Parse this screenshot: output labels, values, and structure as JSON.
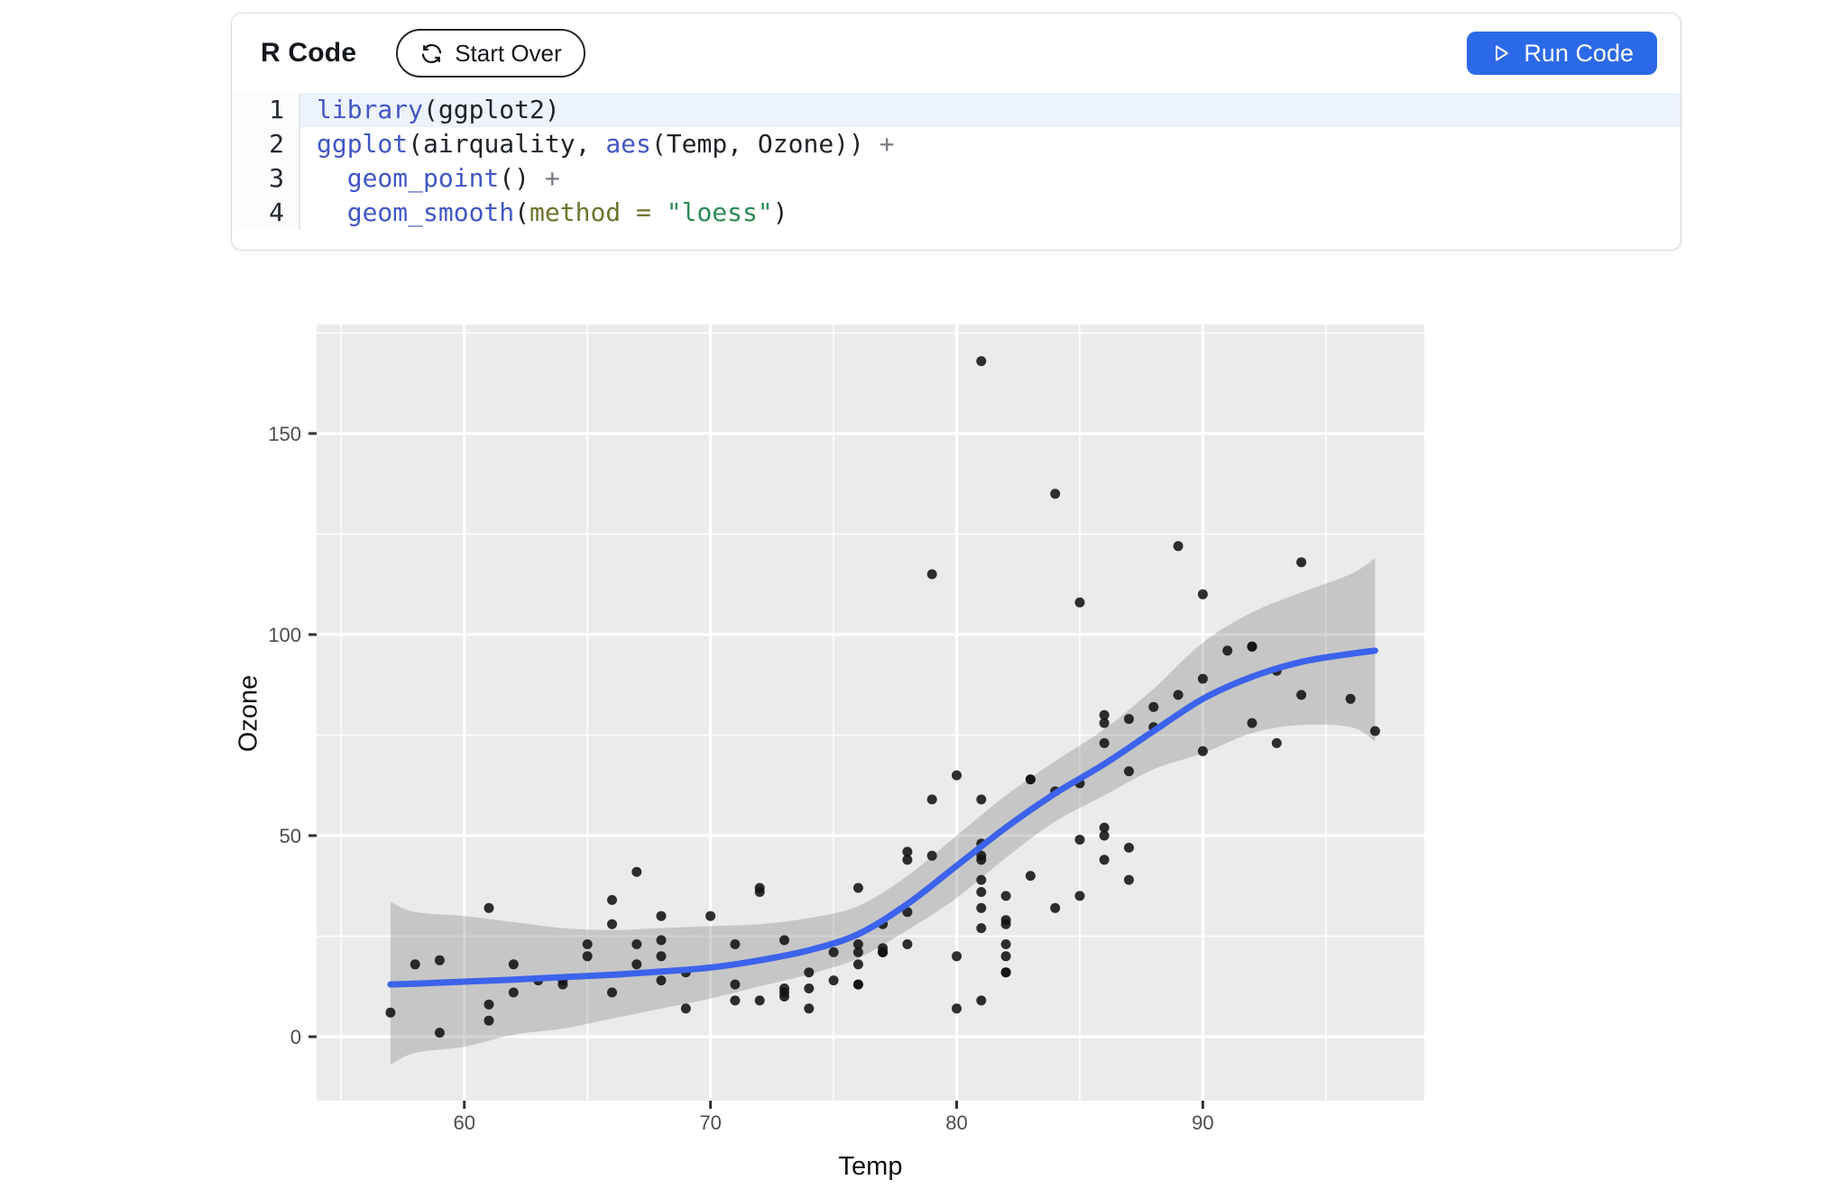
{
  "header": {
    "title": "R Code",
    "start_over_label": "Start Over",
    "run_code_label": "Run Code",
    "run_button_color": "#2c69e8"
  },
  "code": {
    "lines": [
      {
        "num": "1",
        "active": true,
        "tokens": [
          {
            "t": "library",
            "c": "fn"
          },
          {
            "t": "(ggplot2)",
            "c": "pl"
          }
        ]
      },
      {
        "num": "2",
        "active": false,
        "tokens": [
          {
            "t": "ggplot",
            "c": "fn"
          },
          {
            "t": "(airquality, ",
            "c": "pl"
          },
          {
            "t": "aes",
            "c": "fn"
          },
          {
            "t": "(Temp, Ozone)) ",
            "c": "pl"
          },
          {
            "t": "+",
            "c": "op"
          }
        ]
      },
      {
        "num": "3",
        "active": false,
        "tokens": [
          {
            "t": "  ",
            "c": "pl"
          },
          {
            "t": "geom_point",
            "c": "fn"
          },
          {
            "t": "() ",
            "c": "pl"
          },
          {
            "t": "+",
            "c": "op"
          }
        ]
      },
      {
        "num": "4",
        "active": false,
        "tokens": [
          {
            "t": "  ",
            "c": "pl"
          },
          {
            "t": "geom_smooth",
            "c": "fn"
          },
          {
            "t": "(",
            "c": "pl"
          },
          {
            "t": "method = ",
            "c": "arg"
          },
          {
            "t": "\"loess\"",
            "c": "str"
          },
          {
            "t": ")",
            "c": "pl"
          }
        ]
      }
    ]
  },
  "chart_data": {
    "type": "scatter",
    "title": "",
    "xlabel": "Temp",
    "ylabel": "Ozone",
    "xlim": [
      54,
      99
    ],
    "ylim": [
      -15.9,
      177.1
    ],
    "xticks": [
      60,
      70,
      80,
      90
    ],
    "xticks_minor": [
      55,
      65,
      75,
      85,
      95
    ],
    "yticks": [
      0,
      50,
      100,
      150
    ],
    "yticks_minor": [
      25,
      75,
      125,
      175
    ],
    "grid": "on",
    "panel_color": "#ebebeb",
    "point_color": "#121212",
    "smooth_color": "#3b63eb",
    "ribbon_color": "#7a7a7a",
    "points": [
      [
        67,
        41
      ],
      [
        72,
        36
      ],
      [
        74,
        12
      ],
      [
        62,
        18
      ],
      [
        66,
        28
      ],
      [
        65,
        23
      ],
      [
        59,
        19
      ],
      [
        61,
        8
      ],
      [
        74,
        7
      ],
      [
        69,
        16
      ],
      [
        66,
        11
      ],
      [
        68,
        14
      ],
      [
        58,
        18
      ],
      [
        64,
        14
      ],
      [
        66,
        34
      ],
      [
        57,
        6
      ],
      [
        68,
        30
      ],
      [
        62,
        11
      ],
      [
        59,
        1
      ],
      [
        73,
        11
      ],
      [
        61,
        4
      ],
      [
        61,
        32
      ],
      [
        67,
        23
      ],
      [
        81,
        45
      ],
      [
        79,
        115
      ],
      [
        76,
        37
      ],
      [
        82,
        29
      ],
      [
        90,
        71
      ],
      [
        87,
        39
      ],
      [
        82,
        23
      ],
      [
        77,
        21
      ],
      [
        72,
        37
      ],
      [
        65,
        20
      ],
      [
        73,
        12
      ],
      [
        76,
        13
      ],
      [
        84,
        135
      ],
      [
        85,
        49
      ],
      [
        81,
        32
      ],
      [
        83,
        64
      ],
      [
        83,
        40
      ],
      [
        88,
        77
      ],
      [
        92,
        97
      ],
      [
        92,
        97
      ],
      [
        89,
        85
      ],
      [
        73,
        10
      ],
      [
        81,
        27
      ],
      [
        80,
        7
      ],
      [
        81,
        48
      ],
      [
        82,
        35
      ],
      [
        84,
        61
      ],
      [
        87,
        79
      ],
      [
        85,
        63
      ],
      [
        74,
        16
      ],
      [
        86,
        80
      ],
      [
        85,
        108
      ],
      [
        82,
        20
      ],
      [
        86,
        52
      ],
      [
        88,
        82
      ],
      [
        86,
        50
      ],
      [
        83,
        64
      ],
      [
        81,
        59
      ],
      [
        81,
        39
      ],
      [
        81,
        9
      ],
      [
        82,
        16
      ],
      [
        86,
        78
      ],
      [
        85,
        35
      ],
      [
        87,
        66
      ],
      [
        89,
        122
      ],
      [
        90,
        89
      ],
      [
        90,
        110
      ],
      [
        86,
        44
      ],
      [
        82,
        28
      ],
      [
        80,
        65
      ],
      [
        77,
        22
      ],
      [
        79,
        59
      ],
      [
        76,
        23
      ],
      [
        78,
        31
      ],
      [
        78,
        44
      ],
      [
        77,
        21
      ],
      [
        72,
        9
      ],
      [
        79,
        45
      ],
      [
        81,
        168
      ],
      [
        86,
        73
      ],
      [
        97,
        76
      ],
      [
        94,
        118
      ],
      [
        96,
        84
      ],
      [
        94,
        85
      ],
      [
        91,
        96
      ],
      [
        92,
        78
      ],
      [
        93,
        73
      ],
      [
        93,
        91
      ],
      [
        87,
        47
      ],
      [
        84,
        32
      ],
      [
        80,
        20
      ],
      [
        78,
        23
      ],
      [
        75,
        21
      ],
      [
        73,
        24
      ],
      [
        81,
        44
      ],
      [
        76,
        21
      ],
      [
        77,
        28
      ],
      [
        71,
        9
      ],
      [
        71,
        13
      ],
      [
        78,
        46
      ],
      [
        67,
        18
      ],
      [
        76,
        13
      ],
      [
        68,
        24
      ],
      [
        82,
        16
      ],
      [
        64,
        13
      ],
      [
        71,
        23
      ],
      [
        81,
        36
      ],
      [
        69,
        7
      ],
      [
        63,
        14
      ],
      [
        70,
        30
      ],
      [
        75,
        14
      ],
      [
        76,
        18
      ],
      [
        68,
        20
      ]
    ],
    "smooth": {
      "method": "loess",
      "x": [
        57,
        58,
        60,
        62,
        64,
        66,
        68,
        70,
        72,
        74,
        76,
        78,
        80,
        82,
        84,
        86,
        88,
        90,
        92,
        94,
        96,
        97
      ],
      "fit": [
        13,
        13.2,
        13.7,
        14.2,
        14.8,
        15.4,
        16.2,
        17.2,
        19,
        21.5,
        25.5,
        33,
        42.5,
        52,
        60.5,
        67.8,
        76,
        84,
        89.5,
        93.2,
        95.2,
        96
      ],
      "lower": [
        -7,
        -4,
        -2.5,
        0.5,
        2,
        4.5,
        7,
        9.5,
        12.5,
        15.5,
        19.5,
        26.5,
        34.5,
        44.5,
        53.5,
        60,
        66.5,
        70.5,
        75.5,
        77.5,
        77,
        73.5
      ],
      "upper": [
        33.5,
        31,
        30,
        28.5,
        27,
        26.5,
        27,
        27.5,
        28,
        29.5,
        32.5,
        40,
        50,
        60,
        68.5,
        76.5,
        86.5,
        98,
        105.5,
        110.5,
        115,
        119
      ]
    }
  }
}
